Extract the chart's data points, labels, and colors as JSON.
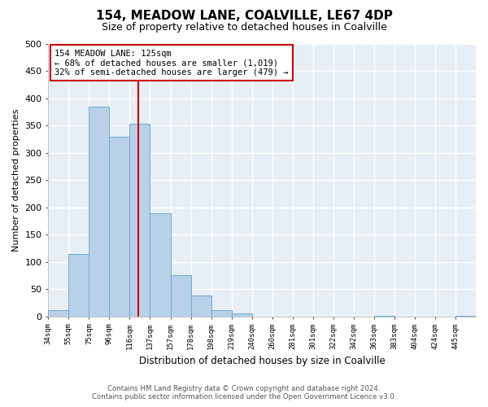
{
  "title": "154, MEADOW LANE, COALVILLE, LE67 4DP",
  "subtitle": "Size of property relative to detached houses in Coalville",
  "xlabel": "Distribution of detached houses by size in Coalville",
  "ylabel": "Number of detached properties",
  "bin_labels": [
    "34sqm",
    "55sqm",
    "75sqm",
    "96sqm",
    "116sqm",
    "137sqm",
    "157sqm",
    "178sqm",
    "198sqm",
    "219sqm",
    "240sqm",
    "260sqm",
    "281sqm",
    "301sqm",
    "322sqm",
    "342sqm",
    "363sqm",
    "383sqm",
    "404sqm",
    "424sqm",
    "445sqm"
  ],
  "bar_heights": [
    12,
    115,
    385,
    330,
    353,
    190,
    76,
    38,
    12,
    5,
    0,
    0,
    0,
    0,
    0,
    0,
    1,
    0,
    0,
    0,
    1
  ],
  "bar_color": "#b8d0e8",
  "bar_edgecolor": "#6baed6",
  "property_bar_index": 4,
  "property_line_color": "#cc0000",
  "annotation_box_text": "154 MEADOW LANE: 125sqm\n← 68% of detached houses are smaller (1,019)\n32% of semi-detached houses are larger (479) →",
  "annotation_box_color": "#cc0000",
  "ylim": [
    0,
    500
  ],
  "yticks": [
    0,
    50,
    100,
    150,
    200,
    250,
    300,
    350,
    400,
    450,
    500
  ],
  "footer_line1": "Contains HM Land Registry data © Crown copyright and database right 2024.",
  "footer_line2": "Contains public sector information licensed under the Open Government Licence v3.0.",
  "bg_color": "#ffffff",
  "plot_bg_color": "#e8eef5",
  "grid_color": "#ffffff",
  "title_fontsize": 11,
  "subtitle_fontsize": 9
}
